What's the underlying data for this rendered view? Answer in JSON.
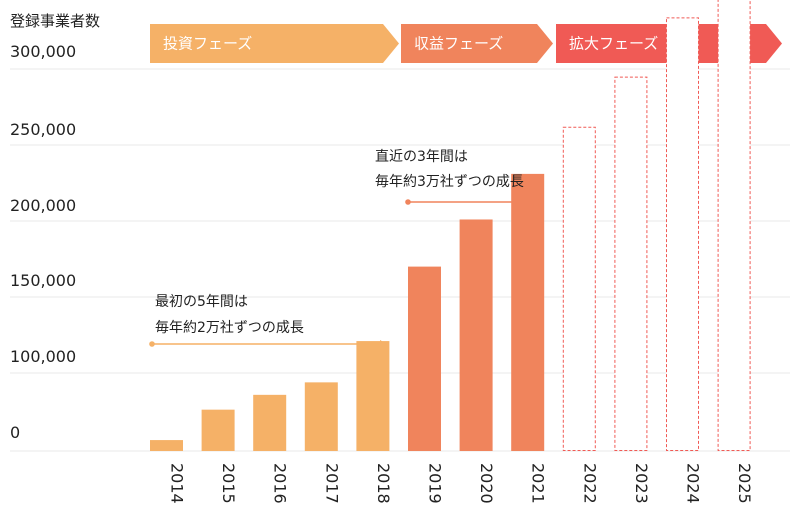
{
  "chart_data": {
    "type": "bar",
    "ylabel": "登録事業者数",
    "y_tick_labels": [
      "0",
      "100,000",
      "150,000",
      "200,000",
      "250,000",
      "300,000"
    ],
    "y_tick_values": [
      0,
      100000,
      150000,
      200000,
      250000,
      300000
    ],
    "categories": [
      "2014",
      "2015",
      "2016",
      "2017",
      "2018",
      "2019",
      "2020",
      "2021",
      "2022",
      "2023",
      "2024",
      "2025"
    ],
    "values": [
      14000,
      53000,
      72000,
      88000,
      121000,
      170000,
      201000,
      231000,
      262000,
      295000,
      334000,
      370000
    ],
    "projected": [
      false,
      false,
      false,
      false,
      false,
      false,
      false,
      false,
      true,
      true,
      true,
      true
    ],
    "grid": true,
    "phases": [
      {
        "label": "投資フェーズ",
        "color": "#f5b167",
        "from": "2014",
        "to": "2018"
      },
      {
        "label": "収益フェーズ",
        "color": "#f0845c",
        "from": "2019",
        "to": "2021"
      },
      {
        "label": "拡大フェーズ",
        "color": "#f05a55",
        "from": "2022",
        "to": "2025"
      }
    ],
    "annotations": [
      {
        "lines": [
          "最初の5年間は",
          "毎年約2万社ずつの成長"
        ],
        "from": "2014",
        "to": "2018",
        "color": "#f5b167"
      },
      {
        "lines": [
          "直近の3年間は",
          "毎年約3万社ずつの成長"
        ],
        "from": "2019",
        "to": "2021",
        "color": "#f0845c"
      }
    ],
    "colors": {
      "invest": "#f5b167",
      "profit": "#f0845c",
      "expand": "#f05a55",
      "grid": "#e9e9e9"
    }
  }
}
